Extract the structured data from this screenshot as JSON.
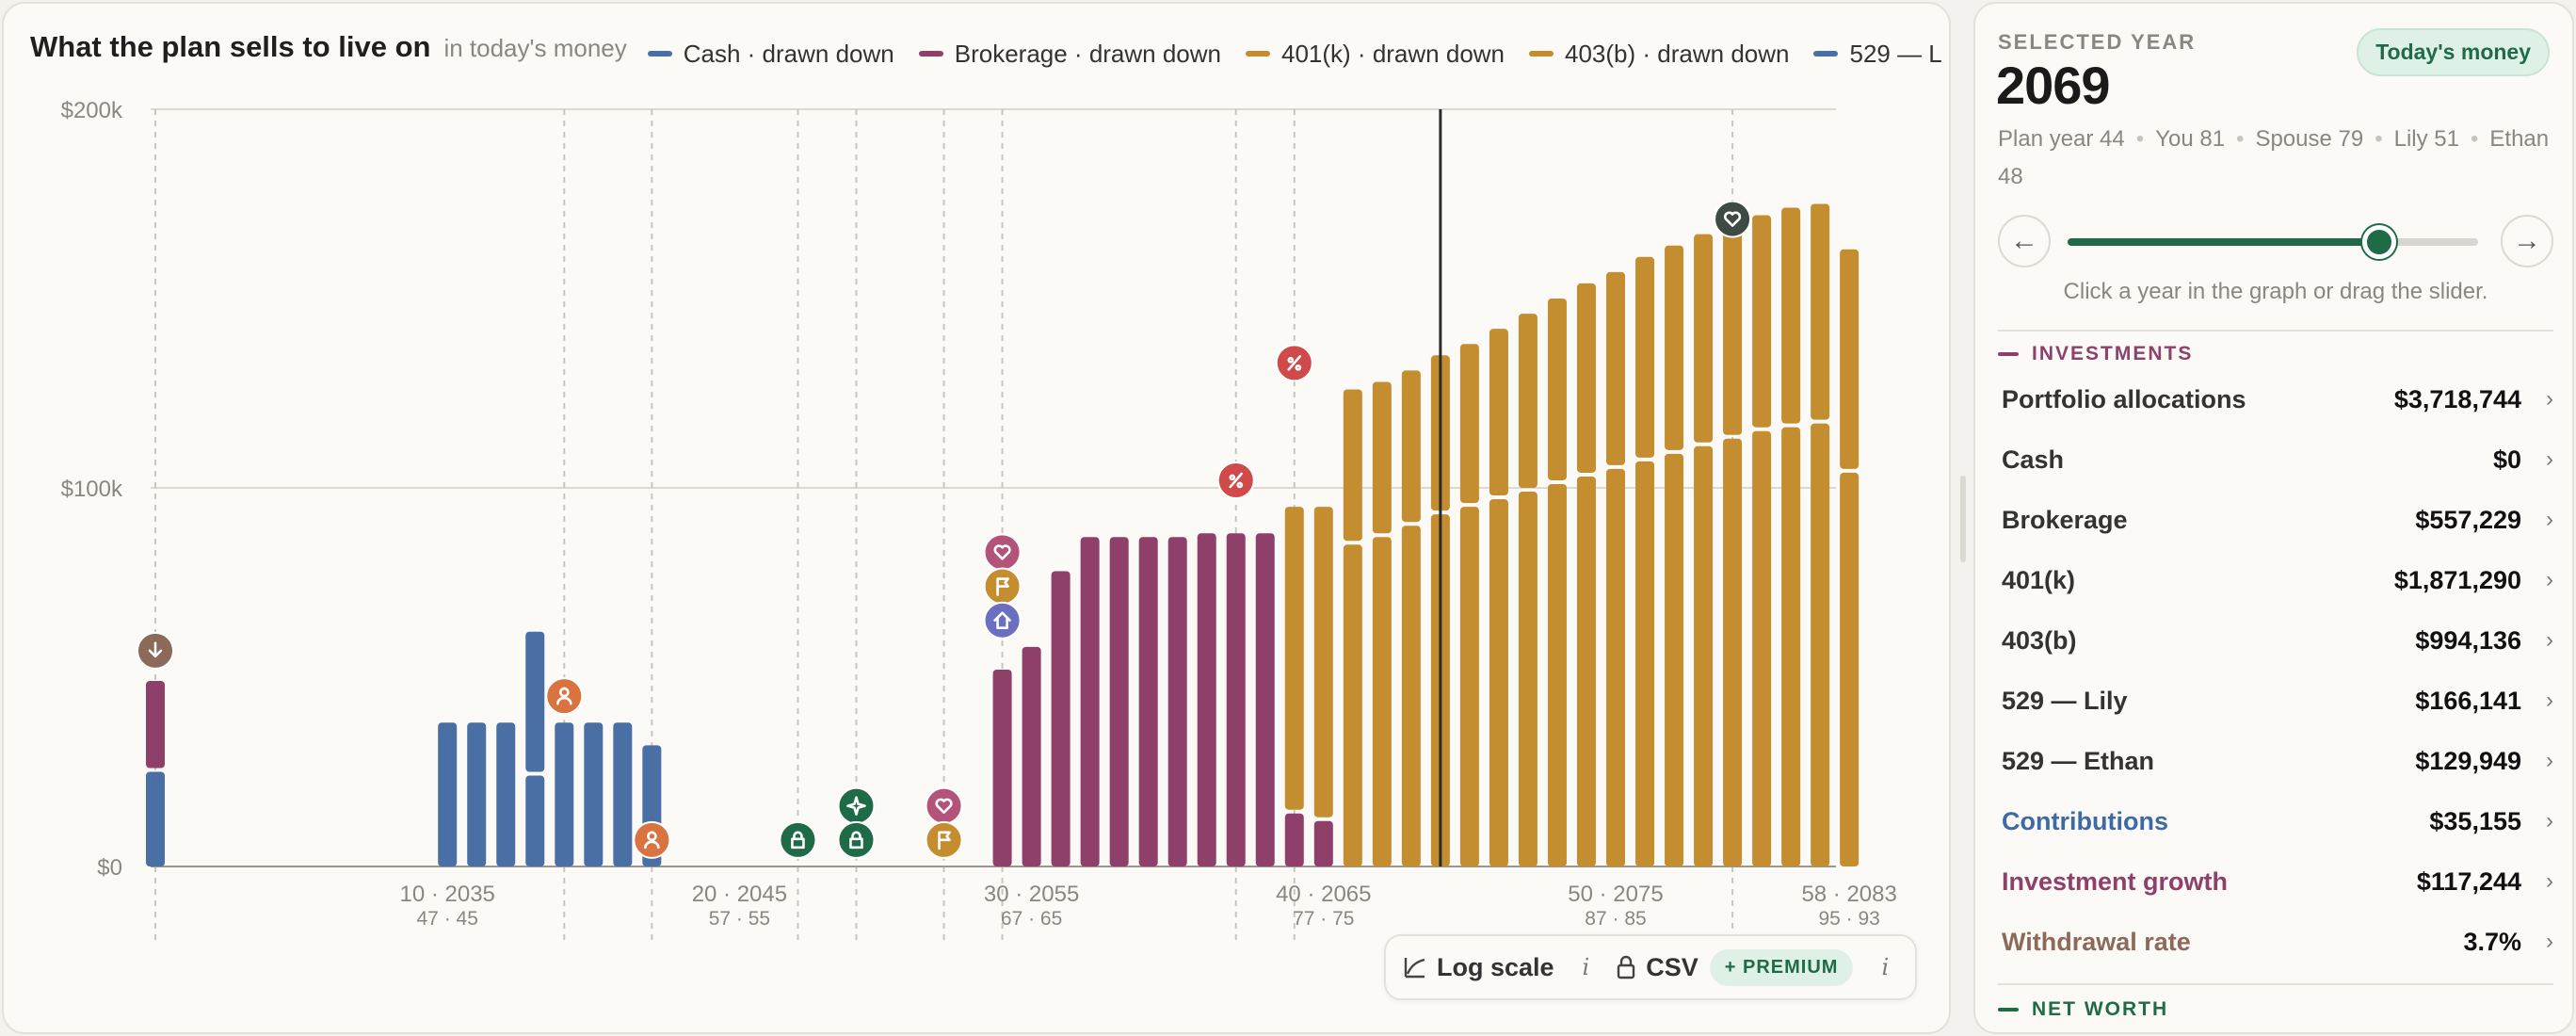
{
  "chart": {
    "title": "What the plan sells to live on",
    "subtitle": "in today's money",
    "legend": [
      {
        "label": "Cash · drawn down",
        "color": "#4a6fa5"
      },
      {
        "label": "Brokerage · drawn down",
        "color": "#8e3f6a"
      },
      {
        "label": "401(k) · drawn down",
        "color": "#c48d30"
      },
      {
        "label": "403(b) · drawn down",
        "color": "#c48d30"
      },
      {
        "label": "529 — L",
        "color": "#4a6fa5"
      }
    ],
    "x_ticks": [
      {
        "top": "10 · 2035",
        "bottom": "47 · 45"
      },
      {
        "top": "20 · 2045",
        "bottom": "57 · 55"
      },
      {
        "top": "30 · 2055",
        "bottom": "67 · 65"
      },
      {
        "top": "40 · 2065",
        "bottom": "77 · 75"
      },
      {
        "top": "50 · 2075",
        "bottom": "87 · 85"
      },
      {
        "top": "58 · 2083",
        "bottom": "95 · 93"
      }
    ],
    "y_ticks": [
      "$0",
      "$100k",
      "$200k"
    ]
  },
  "chart_data": {
    "type": "bar",
    "stacked": true,
    "x_field": "plan_year",
    "x": [
      0,
      10,
      11,
      12,
      13,
      14,
      15,
      16,
      17,
      29,
      30,
      31,
      32,
      33,
      34,
      35,
      36,
      37,
      38,
      39,
      40,
      41,
      42,
      43,
      44,
      45,
      46,
      47,
      48,
      49,
      50,
      51,
      52,
      53,
      54,
      55,
      56,
      57,
      58
    ],
    "series": [
      {
        "name": "Cash · drawn down",
        "color": "#4a6fa5",
        "values": [
          25,
          0,
          0,
          0,
          0,
          0,
          0,
          0,
          0,
          0,
          0,
          0,
          0,
          0,
          0,
          0,
          0,
          0,
          0,
          0,
          0,
          0,
          0,
          0,
          0,
          0,
          0,
          0,
          0,
          0,
          0,
          0,
          0,
          0,
          0,
          0,
          0,
          0,
          0
        ]
      },
      {
        "name": "Brokerage · drawn down",
        "color": "#8e3f6a",
        "values": [
          24,
          0,
          0,
          0,
          0,
          0,
          0,
          0,
          0,
          52,
          58,
          78,
          87,
          87,
          87,
          87,
          88,
          88,
          88,
          14,
          12,
          0,
          0,
          0,
          0,
          0,
          0,
          0,
          0,
          0,
          0,
          0,
          0,
          0,
          0,
          0,
          0,
          0,
          0
        ]
      },
      {
        "name": "401(k) · drawn down",
        "color": "#c48d30",
        "values": [
          0,
          0,
          0,
          0,
          0,
          0,
          0,
          0,
          0,
          0,
          0,
          0,
          0,
          0,
          0,
          0,
          0,
          0,
          0,
          81,
          83,
          85,
          87,
          90,
          93,
          95,
          97,
          99,
          101,
          103,
          105,
          107,
          109,
          111,
          113,
          115,
          116,
          117,
          104
        ]
      },
      {
        "name": "403(b) · drawn down",
        "color": "#c48d30",
        "values": [
          0,
          0,
          0,
          0,
          0,
          0,
          0,
          0,
          0,
          0,
          0,
          0,
          0,
          0,
          0,
          0,
          0,
          0,
          0,
          0,
          0,
          41,
          41,
          41,
          42,
          43,
          45,
          47,
          49,
          51,
          52,
          54,
          55,
          56,
          57,
          57,
          58,
          58,
          59
        ]
      },
      {
        "name": "529 — L",
        "color": "#4a6fa5",
        "values": [
          0,
          38,
          38,
          38,
          38,
          38,
          38,
          38,
          32,
          0,
          0,
          0,
          0,
          0,
          0,
          0,
          0,
          0,
          0,
          0,
          0,
          0,
          0,
          0,
          0,
          0,
          0,
          0,
          0,
          0,
          0,
          0,
          0,
          0,
          0,
          0,
          0,
          0,
          0
        ]
      }
    ],
    "extra_segments": [
      {
        "x": 13,
        "series": "529 — L",
        "values": [
          24,
          38
        ]
      }
    ],
    "x_ticks": [
      10,
      20,
      30,
      40,
      50,
      58
    ],
    "ylim": [
      0,
      200
    ],
    "yticks": [
      0,
      100,
      200
    ],
    "ytick_labels": [
      "$0",
      "$100k",
      "$200k"
    ],
    "selected_year": 44,
    "event_lines": [
      0,
      14,
      17,
      22,
      24,
      27,
      29,
      37,
      39,
      54
    ],
    "markers": [
      {
        "x": 0,
        "y": 57,
        "icon": "download-icon",
        "color": "#8b6a5a"
      },
      {
        "x": 14,
        "y": 45,
        "icon": "person-icon",
        "color": "#d9733f"
      },
      {
        "x": 17,
        "y": 7,
        "icon": "person-icon",
        "color": "#d9733f"
      },
      {
        "x": 22,
        "y": 7,
        "icon": "lock-icon",
        "color": "#1f6b48"
      },
      {
        "x": 24,
        "y": 16,
        "icon": "sparkle-icon",
        "color": "#1f6b48"
      },
      {
        "x": 24,
        "y": 7,
        "icon": "lock-icon",
        "color": "#1f6b48"
      },
      {
        "x": 27,
        "y": 16,
        "icon": "heart-icon",
        "color": "#b4537a"
      },
      {
        "x": 27,
        "y": 7,
        "icon": "flag-icon",
        "color": "#c48d30"
      },
      {
        "x": 29,
        "y": 83,
        "icon": "heart-icon",
        "color": "#b4537a"
      },
      {
        "x": 29,
        "y": 74,
        "icon": "flag-icon",
        "color": "#c48d30"
      },
      {
        "x": 29,
        "y": 65,
        "icon": "home-icon",
        "color": "#6a6fc0"
      },
      {
        "x": 37,
        "y": 102,
        "icon": "percent-icon",
        "color": "#d04a4a"
      },
      {
        "x": 39,
        "y": 133,
        "icon": "percent-icon",
        "color": "#d04a4a"
      },
      {
        "x": 54,
        "y": 171,
        "icon": "heart-icon",
        "color": "#3e4a44"
      }
    ]
  },
  "controls": {
    "log_scale": "Log scale",
    "csv": "CSV",
    "premium": "+ PREMIUM",
    "info": "i"
  },
  "panel": {
    "selected_label": "SELECTED YEAR",
    "badge": "Today's money",
    "year": "2069",
    "ages": [
      "Plan year 44",
      "You 81",
      "Spouse 79",
      "Lily 51",
      "Ethan 48"
    ],
    "slider_value": 44,
    "slider_max": 58,
    "prev": "←",
    "next": "→",
    "hint": "Click a year in the graph or drag the slider.",
    "investments_head": "INVESTMENTS",
    "investments_color": "#8e3f6a",
    "rows": [
      {
        "label": "Portfolio allocations",
        "value": "$3,718,744",
        "color": "#333333"
      },
      {
        "label": "Cash",
        "value": "$0",
        "color": "#333333"
      },
      {
        "label": "Brokerage",
        "value": "$557,229",
        "color": "#333333"
      },
      {
        "label": "401(k)",
        "value": "$1,871,290",
        "color": "#333333"
      },
      {
        "label": "403(b)",
        "value": "$994,136",
        "color": "#333333"
      },
      {
        "label": "529 — Lily",
        "value": "$166,141",
        "color": "#333333"
      },
      {
        "label": "529 — Ethan",
        "value": "$129,949",
        "color": "#333333"
      },
      {
        "label": "Contributions",
        "value": "$35,155",
        "color": "#3d6aa4"
      },
      {
        "label": "Investment growth",
        "value": "$117,244",
        "color": "#8e3f6a"
      },
      {
        "label": "Withdrawal rate",
        "value": "3.7%",
        "color": "#8b6a5a"
      }
    ],
    "chevron": "›",
    "networth_head": "NET WORTH",
    "networth_color": "#1f6b48"
  }
}
